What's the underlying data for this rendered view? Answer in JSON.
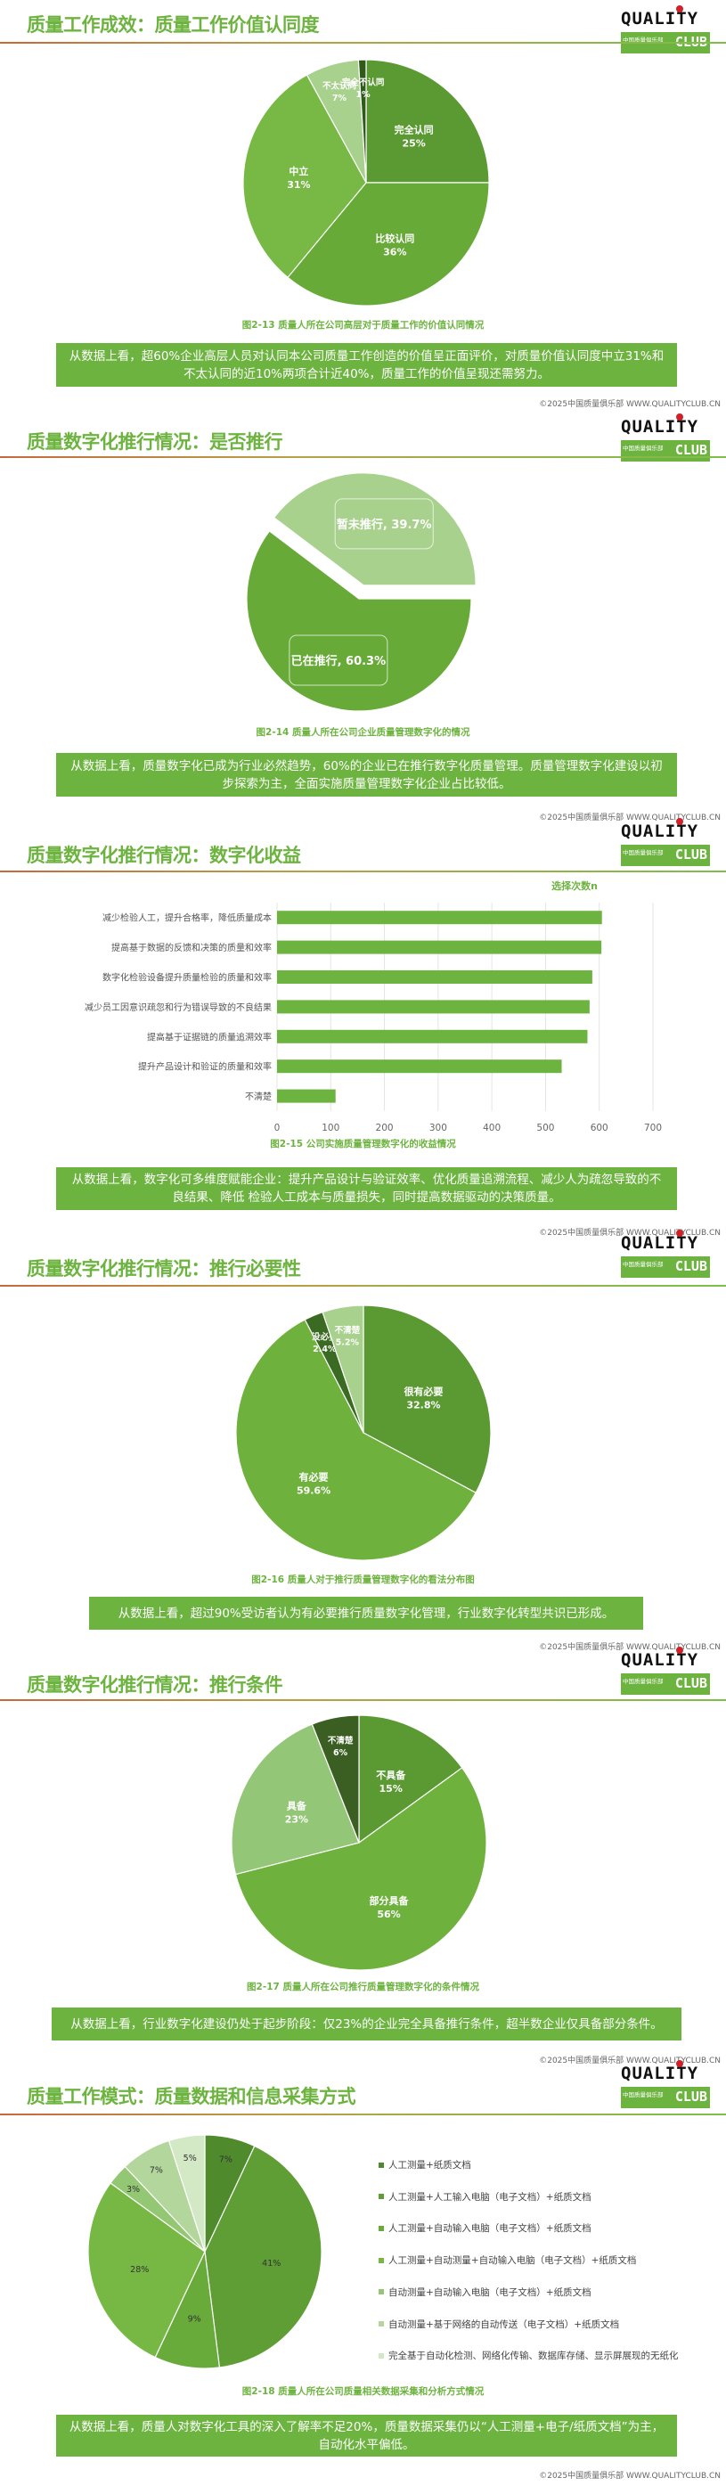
{
  "logo": {
    "word": "QUALITY",
    "cn": "中国质量俱乐部",
    "club": "CLUB"
  },
  "footer": "©2025中国质量俱乐部 WWW.QUALITYCLUB.CN",
  "sections": [
    {
      "title": "质量工作成效：质量工作价值认同度",
      "caption": "图2-13  质量人所在公司高层对于质量工作的价值认同情况",
      "summary": "从数据上看，超60%企业高层人员对认同本公司质量工作创造的价值呈正面评价，对质量价值认同度中立31%和不太认同的近10%两项合计近40%，质量工作的价值呈现还需努力。"
    },
    {
      "title": "质量数字化推行情况：是否推行",
      "caption": "图2-14  质量人所在公司企业质量管理数字化的情况",
      "summary": "从数据上看，质量数字化已成为行业必然趋势，60%的企业已在推行数字化质量管理。质量管理数字化建设以初步探索为主，全面实施质量管理数字化企业占比较低。"
    },
    {
      "title": "质量数字化推行情况：数字化收益",
      "caption": "图2-15  公司实施质量管理数字化的收益情况",
      "summary": "从数据上看，数字化可多维度赋能企业：提升产品设计与验证效率、优化质量追溯流程、减少人为疏忽导致的不良结果、降低 检验人工成本与质量损失，同时提高数据驱动的决策质量。"
    },
    {
      "title": "质量数字化推行情况：推行必要性",
      "caption": "图2-16  质量人对于推行质量管理数字化的看法分布图",
      "summary": "从数据上看，超过90%受访者认为有必要推行质量数字化管理，行业数字化转型共识已形成。"
    },
    {
      "title": "质量数字化推行情况：推行条件",
      "caption": "图2-17  质量人所在公司推行质量管理数字化的条件情况",
      "summary": "从数据上看，行业数字化建设仍处于起步阶段：仅23%的企业完全具备推行条件，超半数企业仅具备部分条件。"
    },
    {
      "title": "质量工作模式：质量数据和信息采集方式",
      "caption": "图2-18  质量人所在公司质量相关数据采集和分析方式情况",
      "summary": "从数据上看，质量人对数字化工具的深入了解率不足20%，质量数据采集仍以“人工测量+电子/纸质文档”为主，自动化水平偏低。"
    }
  ],
  "chart_data": [
    {
      "type": "pie",
      "start": "top",
      "direction": "clockwise",
      "slices": [
        {
          "name": "完全认同",
          "label": "25%",
          "value": 25,
          "color": "#5b9a33"
        },
        {
          "name": "比较认同",
          "label": "36%",
          "value": 36,
          "color": "#67aa38"
        },
        {
          "name": "中立",
          "label": "31%",
          "value": 31,
          "color": "#77b944"
        },
        {
          "name": "不太认同",
          "label": "7%",
          "value": 7,
          "color": "#a9d18e"
        },
        {
          "name": "完全不认同",
          "label": "1%",
          "value": 1,
          "color": "#2f5a1a"
        }
      ]
    },
    {
      "type": "pie",
      "start": "right",
      "direction": "clockwise",
      "exploded": "暂未推行",
      "slices": [
        {
          "name": "已在推行",
          "label": "60.3%",
          "value": 60.3,
          "color": "#67aa38"
        },
        {
          "name": "暂未推行",
          "label": "39.7%",
          "value": 39.7,
          "color": "#a9d18e"
        }
      ]
    },
    {
      "type": "bar",
      "orientation": "horizontal",
      "legend": "选择次数n",
      "categories": [
        "减少检验人工，提升合格率，降低质量成本",
        "提高基于数据的反馈和决策的质量和效率",
        "数字化检验设备提升质量检验的质量和效率",
        "减少员工因意识疏忽和行为错误导致的不良结果",
        "提高基于证据链的质量追溯效率",
        "提升产品设计和验证的质量和效率",
        "不清楚"
      ],
      "values": [
        605,
        604,
        587,
        582,
        578,
        530,
        109
      ],
      "xlim": [
        0,
        700
      ],
      "xticks": [
        0,
        100,
        200,
        300,
        400,
        500,
        600,
        700
      ],
      "grid": true,
      "color": "#6db33f"
    },
    {
      "type": "pie",
      "start": "top",
      "direction": "clockwise",
      "slices": [
        {
          "name": "很有必要",
          "label": "32.8%",
          "value": 32.8,
          "color": "#5b9a33"
        },
        {
          "name": "有必要",
          "label": "59.6%",
          "value": 59.6,
          "color": "#6eb23d"
        },
        {
          "name": "没必要",
          "label": "2.4%",
          "value": 2.4,
          "color": "#3b6b22"
        },
        {
          "name": "不清楚",
          "label": "5.2%",
          "value": 5.2,
          "color": "#a9d18e"
        }
      ]
    },
    {
      "type": "pie",
      "start": "top",
      "direction": "clockwise",
      "slices": [
        {
          "name": "不具备",
          "label": "15%",
          "value": 15,
          "color": "#5b9a33"
        },
        {
          "name": "部分具备",
          "label": "56%",
          "value": 56,
          "color": "#6eb23d"
        },
        {
          "name": "具备",
          "label": "23%",
          "value": 23,
          "color": "#93c676"
        },
        {
          "name": "不清楚",
          "label": "6%",
          "value": 6,
          "color": "#3b5e22"
        }
      ]
    },
    {
      "type": "pie",
      "start": "top",
      "direction": "clockwise",
      "legend_position": "right",
      "slices": [
        {
          "name": "人工测量+纸质文档",
          "label": "7%",
          "value": 7,
          "color": "#4f8a2c"
        },
        {
          "name": "人工测量+人工输入电脑（电子文档）+纸质文档",
          "label": "41%",
          "value": 41,
          "color": "#5e9e35"
        },
        {
          "name": "人工测量+自动输入电脑（电子文档）+纸质文档",
          "label": "9%",
          "value": 9,
          "color": "#69ab3b"
        },
        {
          "name": "人工测量+自动测量+自动输入电脑（电子文档）+纸质文档",
          "label": "28%",
          "value": 28,
          "color": "#76b843"
        },
        {
          "name": "自动测量+自动输入电脑（电子文档）+纸质文档",
          "label": "3%",
          "value": 3,
          "color": "#94c774"
        },
        {
          "name": "自动测量+基于网络的自动传送（电子文档）+纸质文档",
          "label": "7%",
          "value": 7,
          "color": "#b3d69c"
        },
        {
          "name": "完全基于自动化检测、网络化传输、数据库存储、显示屏展现的无纸化",
          "label": "5%",
          "value": 5,
          "color": "#d3e8c5"
        }
      ]
    }
  ]
}
